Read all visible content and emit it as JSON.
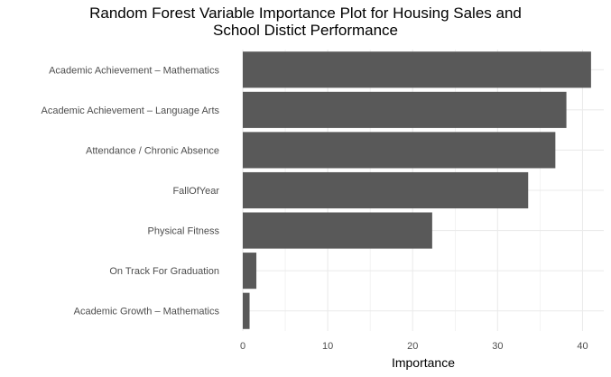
{
  "chart_data": {
    "type": "bar",
    "orientation": "horizontal",
    "title_lines": [
      "Random Forest Variable Importance Plot for Housing Sales and",
      "School Distict Performance"
    ],
    "xlabel": "Importance",
    "ylabel": "",
    "categories": [
      "Academic Achievement – Mathematics",
      "Academic Achievement – Language Arts",
      "Attendance / Chronic Absence",
      "FallOfYear",
      "Physical Fitness",
      "On Track For Graduation",
      "Academic Growth – Mathematics"
    ],
    "values": [
      41.0,
      38.1,
      36.8,
      33.6,
      22.3,
      1.6,
      0.8
    ],
    "xlim": [
      0,
      42.5
    ],
    "x_ticks": [
      0,
      10,
      20,
      30,
      40
    ],
    "grid": true,
    "bar_color": "#595959",
    "grid_color": "#ebebeb"
  }
}
